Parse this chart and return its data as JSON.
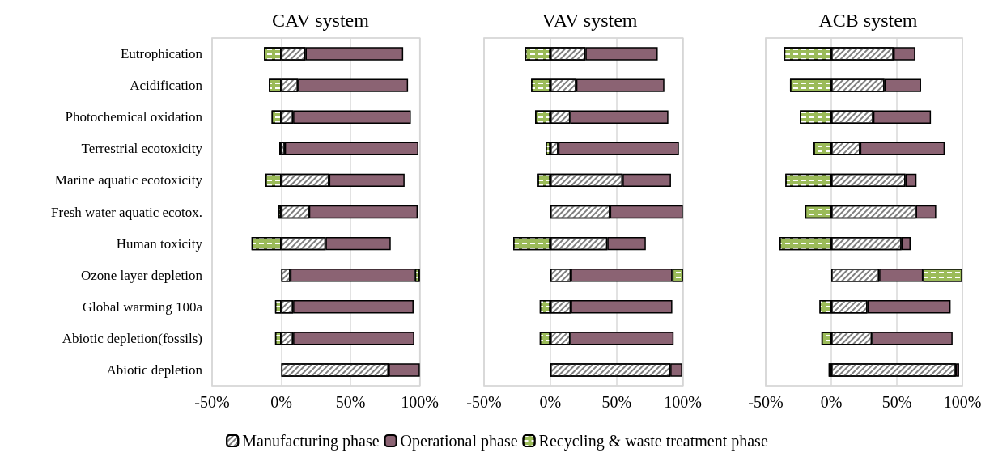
{
  "chart_data": [
    {
      "type": "bar",
      "title": "CAV system",
      "orientation": "horizontal",
      "stacked": true,
      "grid": "x",
      "legend": "bottom",
      "categories": [
        "Eutrophication",
        "Acidification",
        "Photochemical oxidation",
        "Terrestrial ecotoxicity",
        "Marine aquatic ecotoxicity",
        "Fresh water aquatic ecotox.",
        "Human toxicity",
        "Ozone layer depletion",
        "Global warming 100a",
        "Abiotic depletion(fossils)",
        "Abiotic depletion"
      ],
      "xlim": [
        -50,
        100
      ],
      "xticks": [
        {
          "value": -50,
          "label": "-50%"
        },
        {
          "value": 0,
          "label": "0%"
        },
        {
          "value": 50,
          "label": "50%"
        },
        {
          "value": 100,
          "label": "100%"
        }
      ],
      "series": [
        {
          "name": "Manufacturing phase",
          "color": "#ffffff",
          "values": [
            17.5,
            12,
            8.5,
            2.5,
            34.5,
            20,
            32,
            6.5,
            8.5,
            8.5,
            77.5
          ]
        },
        {
          "name": "Operational phase",
          "color": "#8b6373",
          "values": [
            70.5,
            79.5,
            85,
            96.5,
            54.5,
            78.5,
            47,
            90,
            87,
            87.5,
            22.5
          ]
        },
        {
          "name": "Recycling & waste treatment phase",
          "color": "#9bbb59",
          "values": [
            -12.5,
            -9,
            -7,
            -1.5,
            -11.5,
            -2,
            -21.5,
            3.5,
            -4.5,
            -4.5,
            null
          ]
        }
      ]
    },
    {
      "type": "bar",
      "title": "VAV system",
      "orientation": "horizontal",
      "stacked": true,
      "grid": "x",
      "tick_labels": "x",
      "categories": [
        null,
        null,
        null,
        null,
        null,
        null,
        null,
        null,
        null,
        null,
        null
      ],
      "xlim": [
        -50,
        100
      ],
      "xticks": [
        {
          "value": -50,
          "label": "-50%"
        },
        {
          "value": 0,
          "label": "0%"
        },
        {
          "value": 50,
          "label": "50%"
        },
        {
          "value": 100,
          "label": "100%"
        }
      ],
      "series": [
        {
          "name": "Manufacturing phase",
          "color": "#ffffff",
          "values": [
            26.5,
            19.5,
            15,
            6,
            54.5,
            45,
            43,
            15.5,
            15.5,
            15,
            90.5
          ]
        },
        {
          "name": "Operational phase",
          "color": "#8b6373",
          "values": [
            54.5,
            66.5,
            74,
            91,
            36.5,
            55,
            29,
            76.5,
            76.5,
            78,
            9
          ]
        },
        {
          "name": "Recycling & waste treatment phase",
          "color": "#9bbb59",
          "values": [
            -19,
            -14.5,
            -11.5,
            -3.5,
            -9.5,
            null,
            -28,
            8,
            -8,
            -8,
            null
          ]
        }
      ]
    },
    {
      "type": "bar",
      "title": "ACB system",
      "orientation": "horizontal",
      "stacked": true,
      "grid": "x",
      "tick_labels": "x",
      "categories": [
        null,
        null,
        null,
        null,
        null,
        null,
        null,
        null,
        null,
        null,
        null
      ],
      "xlim": [
        -50,
        100
      ],
      "xticks": [
        {
          "value": -50,
          "label": "-50%"
        },
        {
          "value": 0,
          "label": "0%"
        },
        {
          "value": 50,
          "label": "50%"
        },
        {
          "value": 100,
          "label": "100%"
        }
      ],
      "series": [
        {
          "name": "Manufacturing phase",
          "color": "#ffffff",
          "values": [
            47.5,
            40.5,
            32,
            22,
            56.5,
            64.5,
            53.5,
            36.5,
            27.5,
            31,
            95
          ]
        },
        {
          "name": "Operational phase",
          "color": "#8b6373",
          "values": [
            16.5,
            28,
            44,
            64.5,
            8.5,
            15.5,
            7,
            33.5,
            63.5,
            61.5,
            2.5
          ]
        },
        {
          "name": "Recycling & waste treatment phase",
          "color": "#9bbb59",
          "values": [
            -36,
            -31.5,
            -24,
            -13.5,
            -35,
            -20,
            -39.5,
            30,
            -9,
            -7.5,
            -2
          ]
        }
      ]
    }
  ]
}
